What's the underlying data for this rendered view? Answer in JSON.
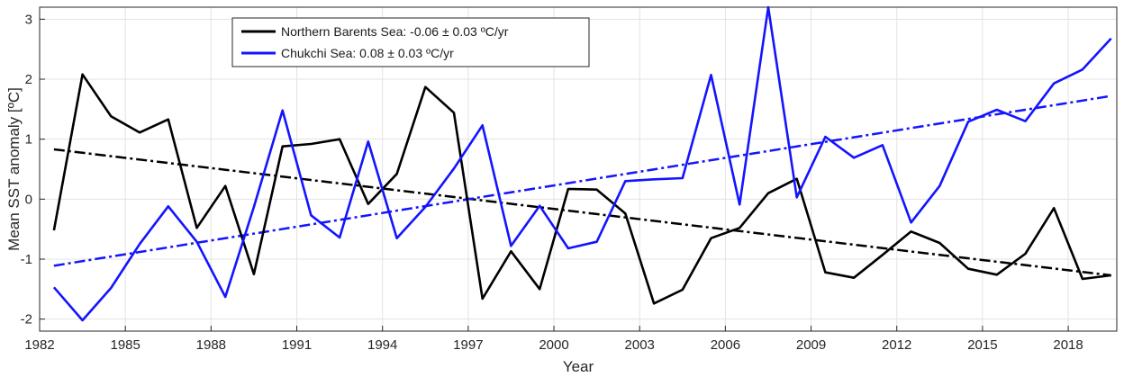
{
  "chart_data": {
    "type": "line",
    "xlabel": "Year",
    "ylabel": "Mean SST anomaly [ºC]",
    "xlim": [
      1982,
      2019.7
    ],
    "ylim": [
      -2.2,
      3.2
    ],
    "xticks": [
      1982,
      1985,
      1988,
      1991,
      1994,
      1997,
      2000,
      2003,
      2006,
      2009,
      2012,
      2015,
      2018
    ],
    "yticks": [
      -2,
      -1,
      0,
      1,
      2,
      3
    ],
    "grid": true,
    "legend_position": "top-left",
    "x": [
      1982.5,
      1983.5,
      1984.5,
      1985.5,
      1986.5,
      1987.5,
      1988.5,
      1989.5,
      1990.5,
      1991.5,
      1992.5,
      1993.5,
      1994.5,
      1995.5,
      1996.5,
      1997.5,
      1998.5,
      1999.5,
      2000.5,
      2001.5,
      2002.5,
      2003.5,
      2004.5,
      2005.5,
      2006.5,
      2007.5,
      2008.5,
      2009.5,
      2010.5,
      2011.5,
      2012.5,
      2013.5,
      2014.5,
      2015.5,
      2016.5,
      2017.5,
      2018.5,
      2019.5
    ],
    "series": [
      {
        "name": "Northern Barents Sea: -0.06 ± 0.03 ºC/yr",
        "color": "#000000",
        "values": [
          -0.52,
          2.08,
          1.38,
          1.11,
          1.33,
          -0.48,
          0.22,
          -1.25,
          0.88,
          0.92,
          1.0,
          -0.08,
          0.42,
          1.87,
          1.44,
          -1.66,
          -0.87,
          -1.5,
          0.17,
          0.16,
          -0.24,
          -1.74,
          -1.51,
          -0.65,
          -0.48,
          0.1,
          0.34,
          -1.22,
          -1.31,
          -0.93,
          -0.54,
          -0.73,
          -1.16,
          -1.26,
          -0.91,
          -0.15,
          -1.33,
          -1.27
        ],
        "trend": [
          0.83,
          -1.27
        ]
      },
      {
        "name": "Chukchi Sea: 0.08 ± 0.03 ºC/yr",
        "color": "#1414ff",
        "values": [
          -1.47,
          -2.02,
          -1.48,
          -0.75,
          -0.12,
          -0.71,
          -1.63,
          -0.13,
          1.48,
          -0.27,
          -0.64,
          0.96,
          -0.65,
          -0.13,
          0.51,
          1.23,
          -0.78,
          -0.11,
          -0.82,
          -0.71,
          0.3,
          0.33,
          0.35,
          2.07,
          -0.09,
          3.2,
          0.03,
          1.04,
          0.69,
          0.9,
          -0.39,
          0.22,
          1.29,
          1.49,
          1.3,
          1.93,
          2.16,
          2.68
        ],
        "trend": [
          -1.11,
          1.72
        ]
      }
    ]
  }
}
